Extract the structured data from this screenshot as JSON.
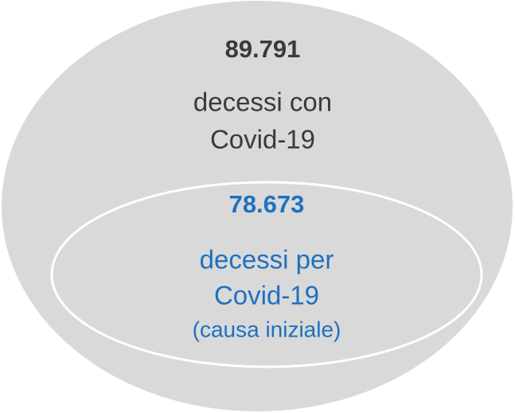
{
  "outer": {
    "value": "89.791",
    "lines": [
      "decessi con",
      "Covid-19"
    ]
  },
  "inner": {
    "value": "78.673",
    "lines": [
      "decessi per",
      "Covid-19",
      "(causa iniziale)"
    ]
  }
}
